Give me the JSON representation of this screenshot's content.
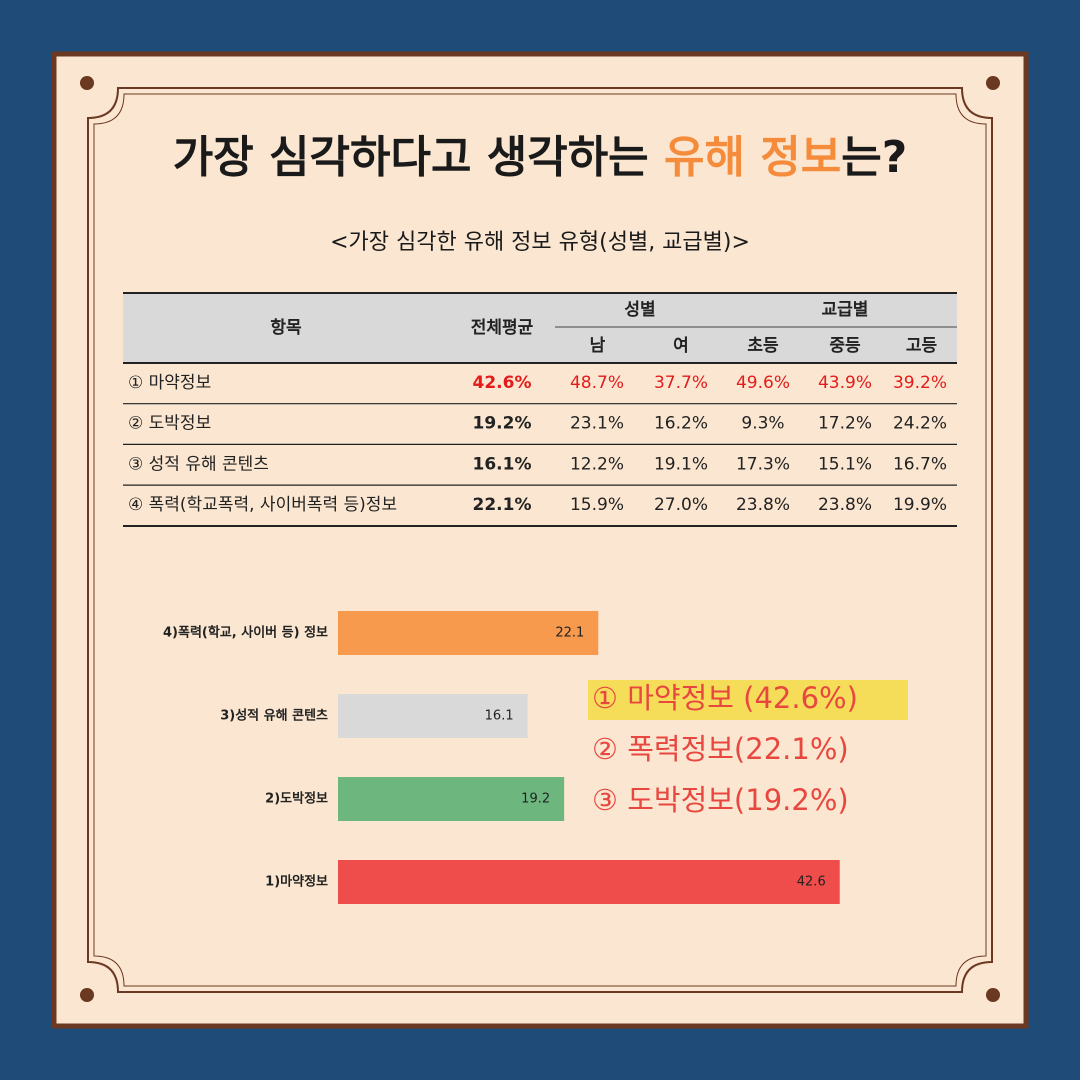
{
  "title_parts": [
    "가장 심각하다고 생각하는 ",
    "유해 정보",
    "는?"
  ],
  "subtitle": "<가장 심각한 유해 정보 유형(성별, 교급별)>",
  "table": {
    "header": {
      "item": "항목",
      "average": "전체평균",
      "gender": "성별",
      "school": "교급별",
      "sub": [
        "남",
        "여",
        "초등",
        "중등",
        "고등"
      ]
    },
    "rows": [
      [
        "① 마약정보",
        "42.6%",
        "48.7%",
        "37.7%",
        "49.6%",
        "43.9%",
        "39.2%"
      ],
      [
        "② 도박정보",
        "19.2%",
        "23.1%",
        "16.2%",
        "9.3%",
        "17.2%",
        "24.2%"
      ],
      [
        "③ 성적 유해 콘텐츠",
        "16.1%",
        "12.2%",
        "19.1%",
        "17.3%",
        "15.1%",
        "16.7%"
      ],
      [
        "④ 폭력(학교폭력, 사이버폭력 등)정보",
        "22.1%",
        "15.9%",
        "27.0%",
        "23.8%",
        "23.8%",
        "19.9%"
      ]
    ]
  },
  "chart_data": {
    "type": "hbar",
    "categories": [
      "4)폭력(학교, 사이버 등) 정보",
      "3)성적 유해 콘텐츠",
      "2)도박정보",
      "1)마약정보"
    ],
    "values": [
      22.1,
      16.1,
      19.2,
      42.6
    ],
    "colors": [
      "#f79a4d",
      "#d9d9d9",
      "#6db77f",
      "#ef4c4c"
    ],
    "xlim": [
      0,
      45
    ],
    "annotations": [
      "① 마약정보 (42.6%)",
      "② 폭력정보(22.1%)",
      "③ 도박정보(19.2%)"
    ]
  }
}
